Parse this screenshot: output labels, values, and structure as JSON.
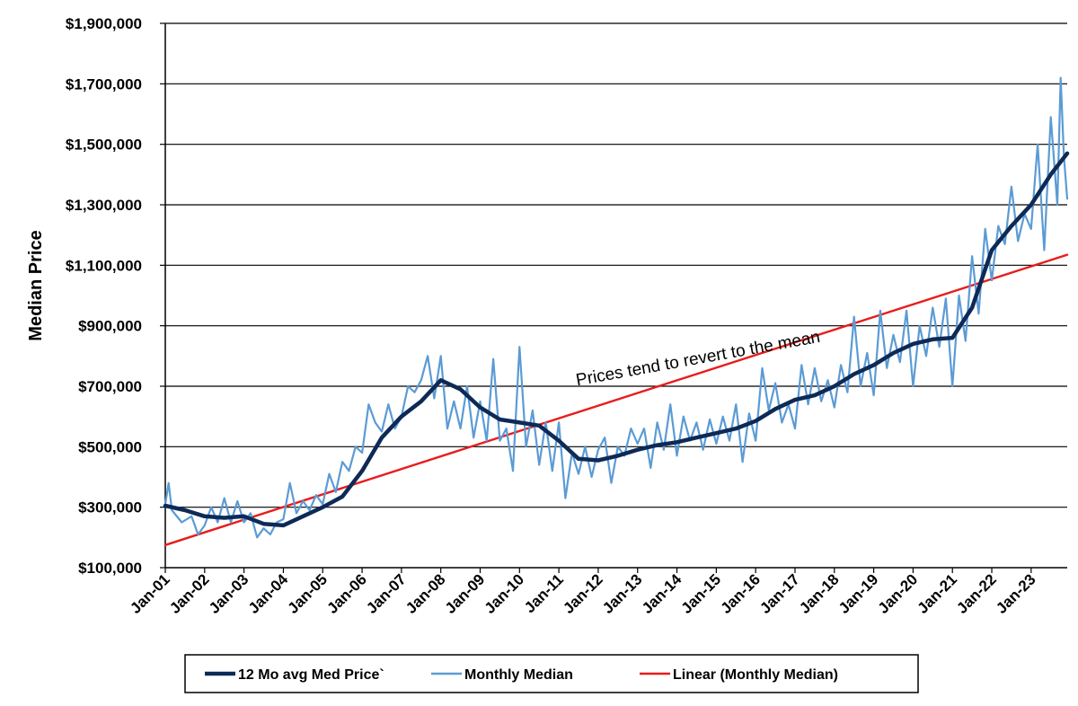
{
  "chart_data": {
    "type": "line",
    "title": "",
    "xlabel": "",
    "ylabel": "Median Price",
    "x_tick_labels": [
      "Jan-01",
      "Jan-02",
      "Jan-03",
      "Jan-04",
      "Jan-05",
      "Jan-06",
      "Jan-07",
      "Jan-08",
      "Jan-09",
      "Jan-10",
      "Jan-11",
      "Jan-12",
      "Jan-13",
      "Jan-14",
      "Jan-15",
      "Jan-16",
      "Jan-17",
      "Jan-18",
      "Jan-19",
      "Jan-20",
      "Jan-21",
      "Jan-22",
      "Jan-23"
    ],
    "y_tick_labels": [
      "$100,000",
      "$300,000",
      "$500,000",
      "$700,000",
      "$900,000",
      "$1,100,000",
      "$1,300,000",
      "$1,500,000",
      "$1,700,000",
      "$1,900,000"
    ],
    "ylim": [
      100000,
      1900000
    ],
    "xlim": [
      "Jan-01",
      "Dec-23"
    ],
    "grid": "horizontal",
    "legend_position": "bottom",
    "annotation": "Prices tend to revert to the mean",
    "series": [
      {
        "name": "12 Mo avg Med Price`",
        "color": "#0d2a57",
        "points": [
          [
            "Jan-01",
            305000
          ],
          [
            "Jul-01",
            290000
          ],
          [
            "Jan-02",
            270000
          ],
          [
            "Jul-02",
            265000
          ],
          [
            "Jan-03",
            270000
          ],
          [
            "Jul-03",
            245000
          ],
          [
            "Jan-04",
            240000
          ],
          [
            "Jul-04",
            270000
          ],
          [
            "Jan-05",
            300000
          ],
          [
            "Jul-05",
            335000
          ],
          [
            "Jan-06",
            420000
          ],
          [
            "Jul-06",
            530000
          ],
          [
            "Jan-07",
            600000
          ],
          [
            "Jul-07",
            650000
          ],
          [
            "Jan-08",
            720000
          ],
          [
            "Jul-08",
            690000
          ],
          [
            "Jan-09",
            630000
          ],
          [
            "Jul-09",
            590000
          ],
          [
            "Jan-10",
            580000
          ],
          [
            "Jul-10",
            570000
          ],
          [
            "Jan-11",
            520000
          ],
          [
            "Jul-11",
            460000
          ],
          [
            "Jan-12",
            455000
          ],
          [
            "Jul-12",
            470000
          ],
          [
            "Jan-13",
            490000
          ],
          [
            "Jul-13",
            505000
          ],
          [
            "Jan-14",
            515000
          ],
          [
            "Jul-14",
            530000
          ],
          [
            "Jan-15",
            545000
          ],
          [
            "Jul-15",
            560000
          ],
          [
            "Jan-16",
            585000
          ],
          [
            "Jul-16",
            625000
          ],
          [
            "Jan-17",
            655000
          ],
          [
            "Jul-17",
            670000
          ],
          [
            "Jan-18",
            700000
          ],
          [
            "Jul-18",
            740000
          ],
          [
            "Jan-19",
            770000
          ],
          [
            "Jul-19",
            810000
          ],
          [
            "Jan-20",
            840000
          ],
          [
            "Jul-20",
            855000
          ],
          [
            "Jan-21",
            860000
          ],
          [
            "Jul-21",
            960000
          ],
          [
            "Jan-22",
            1150000
          ],
          [
            "Jul-22",
            1230000
          ],
          [
            "Jan-23",
            1300000
          ],
          [
            "Jul-23",
            1400000
          ],
          [
            "Dec-23",
            1470000
          ]
        ]
      },
      {
        "name": "Monthly Median",
        "color": "#5b9bd5",
        "points": [
          [
            "Jan-01",
            310000
          ],
          [
            "Feb-01",
            380000
          ],
          [
            "Mar-01",
            290000
          ],
          [
            "Jun-01",
            250000
          ],
          [
            "Sep-01",
            270000
          ],
          [
            "Nov-01",
            210000
          ],
          [
            "Jan-02",
            240000
          ],
          [
            "Mar-02",
            300000
          ],
          [
            "May-02",
            250000
          ],
          [
            "Jul-02",
            330000
          ],
          [
            "Sep-02",
            250000
          ],
          [
            "Nov-02",
            320000
          ],
          [
            "Jan-03",
            250000
          ],
          [
            "Mar-03",
            280000
          ],
          [
            "May-03",
            200000
          ],
          [
            "Jul-03",
            230000
          ],
          [
            "Sep-03",
            210000
          ],
          [
            "Nov-03",
            250000
          ],
          [
            "Jan-04",
            260000
          ],
          [
            "Mar-04",
            380000
          ],
          [
            "May-04",
            280000
          ],
          [
            "Jul-04",
            320000
          ],
          [
            "Sep-04",
            290000
          ],
          [
            "Nov-04",
            340000
          ],
          [
            "Jan-05",
            310000
          ],
          [
            "Mar-05",
            410000
          ],
          [
            "May-05",
            350000
          ],
          [
            "Jul-05",
            450000
          ],
          [
            "Sep-05",
            420000
          ],
          [
            "Nov-05",
            500000
          ],
          [
            "Jan-06",
            480000
          ],
          [
            "Mar-06",
            640000
          ],
          [
            "May-06",
            580000
          ],
          [
            "Jul-06",
            550000
          ],
          [
            "Sep-06",
            640000
          ],
          [
            "Nov-06",
            560000
          ],
          [
            "Jan-07",
            600000
          ],
          [
            "Mar-07",
            700000
          ],
          [
            "May-07",
            680000
          ],
          [
            "Jul-07",
            720000
          ],
          [
            "Sep-07",
            800000
          ],
          [
            "Nov-07",
            660000
          ],
          [
            "Jan-08",
            800000
          ],
          [
            "Mar-08",
            560000
          ],
          [
            "May-08",
            650000
          ],
          [
            "Jul-08",
            560000
          ],
          [
            "Sep-08",
            700000
          ],
          [
            "Nov-08",
            530000
          ],
          [
            "Jan-09",
            650000
          ],
          [
            "Mar-09",
            520000
          ],
          [
            "May-09",
            790000
          ],
          [
            "Jul-09",
            520000
          ],
          [
            "Sep-09",
            560000
          ],
          [
            "Nov-09",
            420000
          ],
          [
            "Jan-10",
            830000
          ],
          [
            "Mar-10",
            500000
          ],
          [
            "May-10",
            620000
          ],
          [
            "Jul-10",
            440000
          ],
          [
            "Sep-10",
            580000
          ],
          [
            "Nov-10",
            420000
          ],
          [
            "Jan-11",
            580000
          ],
          [
            "Mar-11",
            330000
          ],
          [
            "May-11",
            480000
          ],
          [
            "Jul-11",
            410000
          ],
          [
            "Sep-11",
            500000
          ],
          [
            "Nov-11",
            400000
          ],
          [
            "Jan-12",
            490000
          ],
          [
            "Mar-12",
            530000
          ],
          [
            "May-12",
            380000
          ],
          [
            "Jul-12",
            500000
          ],
          [
            "Sep-12",
            470000
          ],
          [
            "Nov-12",
            560000
          ],
          [
            "Jan-13",
            510000
          ],
          [
            "Mar-13",
            560000
          ],
          [
            "May-13",
            430000
          ],
          [
            "Jul-13",
            580000
          ],
          [
            "Sep-13",
            490000
          ],
          [
            "Nov-13",
            640000
          ],
          [
            "Jan-14",
            470000
          ],
          [
            "Mar-14",
            600000
          ],
          [
            "May-14",
            520000
          ],
          [
            "Jul-14",
            580000
          ],
          [
            "Sep-14",
            490000
          ],
          [
            "Nov-14",
            590000
          ],
          [
            "Jan-15",
            510000
          ],
          [
            "Mar-15",
            600000
          ],
          [
            "May-15",
            520000
          ],
          [
            "Jul-15",
            640000
          ],
          [
            "Sep-15",
            450000
          ],
          [
            "Nov-15",
            610000
          ],
          [
            "Jan-16",
            520000
          ],
          [
            "Mar-16",
            760000
          ],
          [
            "May-16",
            620000
          ],
          [
            "Jul-16",
            710000
          ],
          [
            "Sep-16",
            580000
          ],
          [
            "Nov-16",
            640000
          ],
          [
            "Jan-17",
            560000
          ],
          [
            "Mar-17",
            770000
          ],
          [
            "May-17",
            640000
          ],
          [
            "Jul-17",
            760000
          ],
          [
            "Sep-17",
            650000
          ],
          [
            "Nov-17",
            720000
          ],
          [
            "Jan-18",
            630000
          ],
          [
            "Mar-18",
            770000
          ],
          [
            "May-18",
            680000
          ],
          [
            "Jul-18",
            930000
          ],
          [
            "Sep-18",
            700000
          ],
          [
            "Nov-18",
            810000
          ],
          [
            "Jan-19",
            670000
          ],
          [
            "Mar-19",
            950000
          ],
          [
            "May-19",
            760000
          ],
          [
            "Jul-19",
            870000
          ],
          [
            "Sep-19",
            780000
          ],
          [
            "Nov-19",
            950000
          ],
          [
            "Jan-20",
            700000
          ],
          [
            "Mar-20",
            900000
          ],
          [
            "May-20",
            800000
          ],
          [
            "Jul-20",
            960000
          ],
          [
            "Sep-20",
            830000
          ],
          [
            "Nov-20",
            990000
          ],
          [
            "Jan-21",
            700000
          ],
          [
            "Mar-21",
            1000000
          ],
          [
            "May-21",
            850000
          ],
          [
            "Jul-21",
            1130000
          ],
          [
            "Sep-21",
            940000
          ],
          [
            "Nov-21",
            1220000
          ],
          [
            "Jan-22",
            1050000
          ],
          [
            "Mar-22",
            1230000
          ],
          [
            "May-22",
            1170000
          ],
          [
            "Jul-22",
            1360000
          ],
          [
            "Sep-22",
            1180000
          ],
          [
            "Nov-22",
            1270000
          ],
          [
            "Jan-23",
            1220000
          ],
          [
            "Mar-23",
            1500000
          ],
          [
            "May-23",
            1150000
          ],
          [
            "Jul-23",
            1590000
          ],
          [
            "Sep-23",
            1300000
          ],
          [
            "Oct-23",
            1720000
          ],
          [
            "Nov-23",
            1460000
          ],
          [
            "Dec-23",
            1320000
          ]
        ]
      },
      {
        "name": "Linear (Monthly Median)",
        "color": "#e81c1c",
        "points": [
          [
            "Jan-01",
            175000
          ],
          [
            "Dec-23",
            1135000
          ]
        ]
      }
    ]
  }
}
